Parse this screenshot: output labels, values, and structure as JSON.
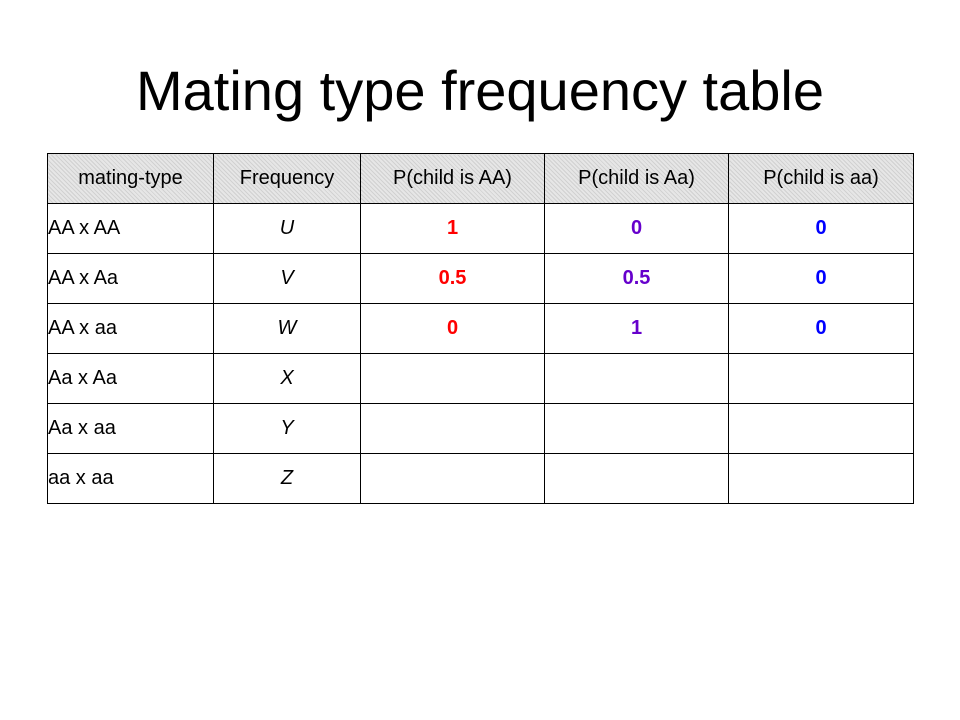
{
  "title": "Mating type frequency table",
  "colors": {
    "p_child_AA": "#ff0000",
    "p_child_Aa": "#6600cc",
    "p_child_aa": "#0000ff"
  },
  "table": {
    "headers": [
      "mating-type",
      "Frequency",
      "P(child is AA)",
      "P(child is Aa)",
      "P(child is aa)"
    ],
    "rows": [
      {
        "mating": "AA x AA",
        "freq": "U",
        "pAA": "1",
        "pAa": "0",
        "paa": "0"
      },
      {
        "mating": "AA x Aa",
        "freq": "V",
        "pAA": "0.5",
        "pAa": "0.5",
        "paa": "0"
      },
      {
        "mating": "AA x aa",
        "freq": "W",
        "pAA": "0",
        "pAa": "1",
        "paa": "0"
      },
      {
        "mating": "Aa x Aa",
        "freq": "X",
        "pAA": "",
        "pAa": "",
        "paa": ""
      },
      {
        "mating": "Aa x aa",
        "freq": "Y",
        "pAA": "",
        "pAa": "",
        "paa": ""
      },
      {
        "mating": "aa x aa",
        "freq": "Z",
        "pAA": "",
        "pAa": "",
        "paa": ""
      }
    ]
  }
}
